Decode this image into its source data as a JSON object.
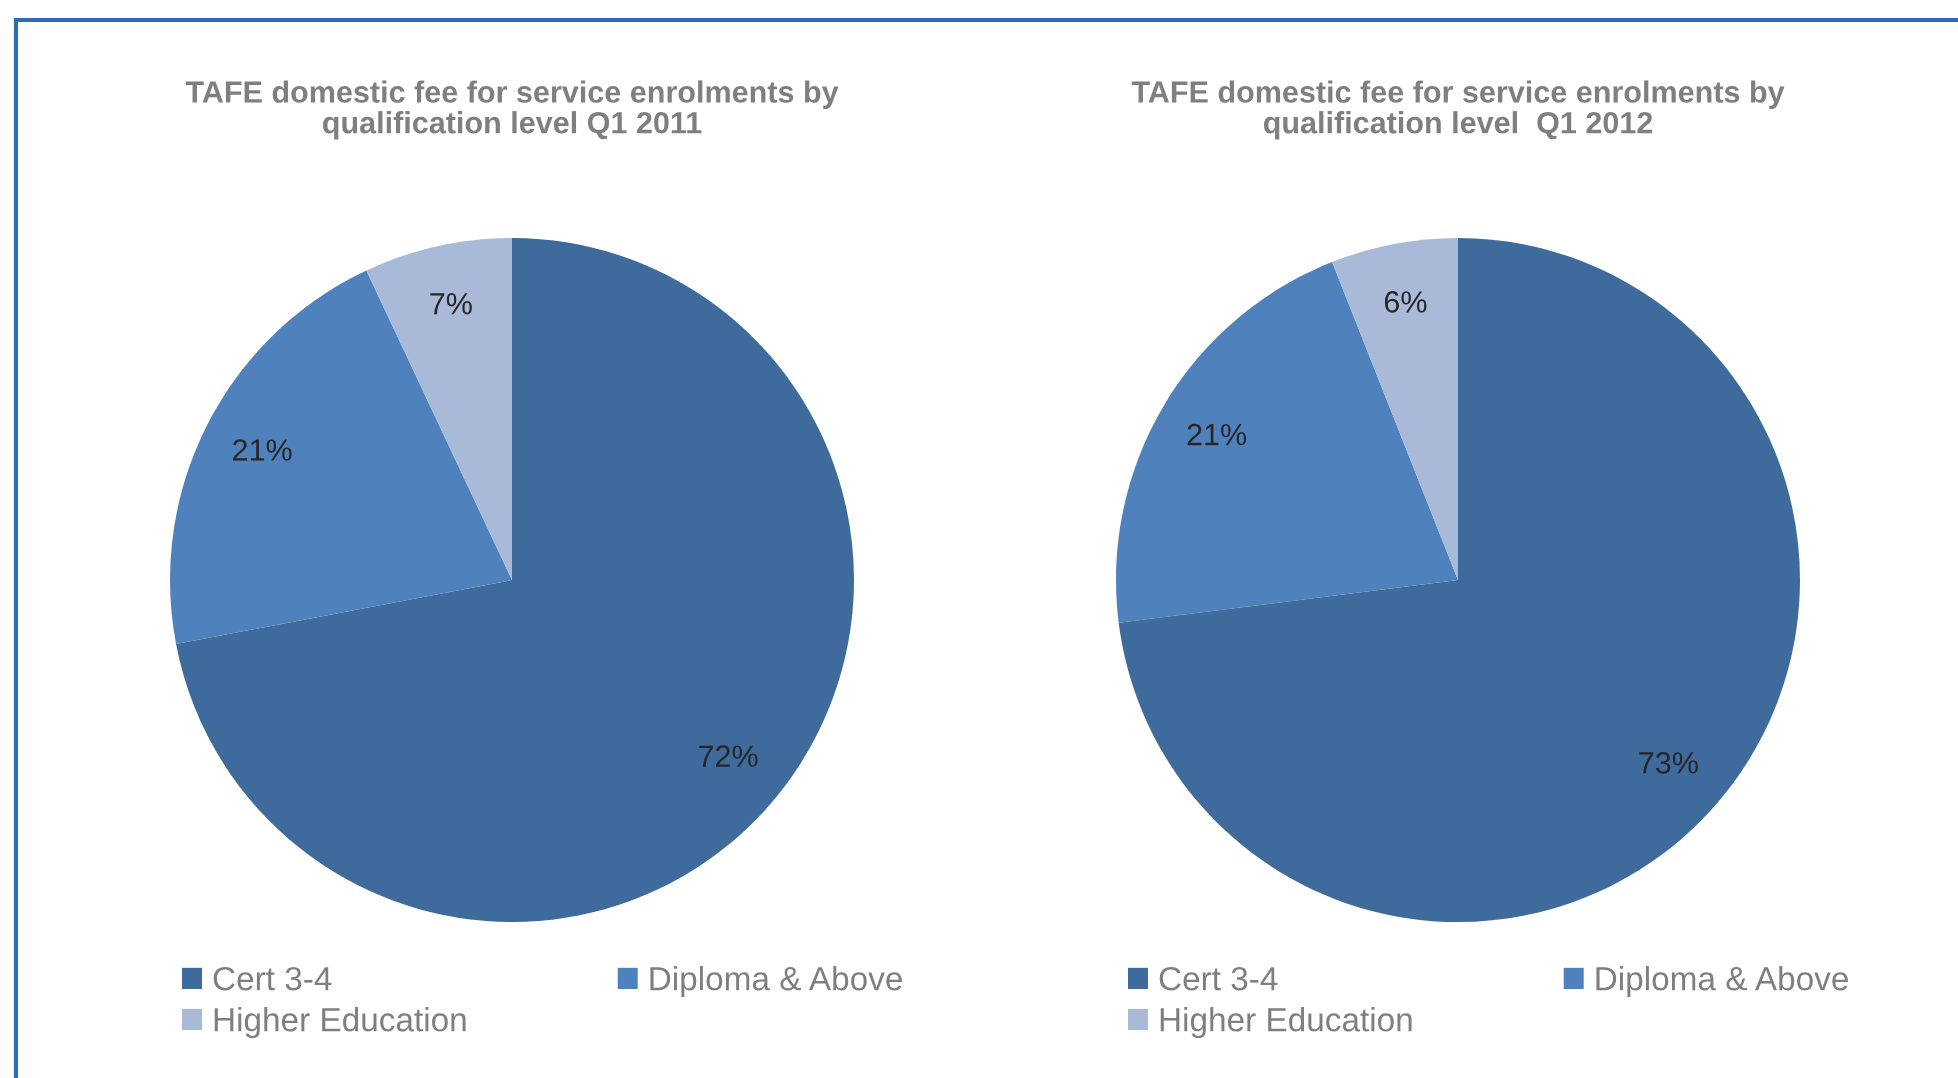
{
  "chart_data": [
    {
      "type": "pie",
      "title": "TAFE domestic fee for service enrolments by\nqualification level Q1 2011",
      "categories": [
        "Cert 3-4",
        "Diploma & Above",
        "Higher Education"
      ],
      "values": [
        72,
        21,
        7
      ],
      "value_labels": [
        "72%",
        "21%",
        "7%"
      ],
      "colors": [
        "#3f6a9c",
        "#4f81bd",
        "#a9b9d8"
      ],
      "legend": "bottom"
    },
    {
      "type": "pie",
      "title": "TAFE domestic fee for service enrolments by\nqualification level  Q1 2012",
      "categories": [
        "Cert 3-4",
        "Diploma & Above",
        "Higher Education"
      ],
      "values": [
        73,
        21,
        6
      ],
      "value_labels": [
        "73%",
        "21%",
        "6%"
      ],
      "colors": [
        "#3f6a9c",
        "#4f81bd",
        "#a9b9d8"
      ],
      "legend": "bottom"
    }
  ]
}
